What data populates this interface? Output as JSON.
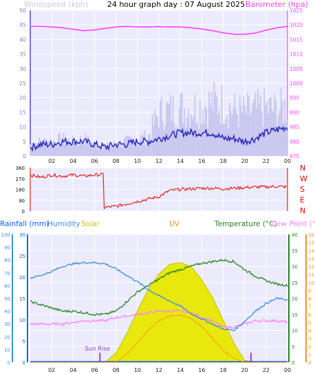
{
  "header": {
    "title": "24 hour graph day : 07 August 2025",
    "left_label": "Windspeed (kph)",
    "right_label": "Barometer (hpa)"
  },
  "colors": {
    "wind": "#c9c9f0",
    "wind_label": "#c8c8e8",
    "wind_avg": "#2020c0",
    "baro": "#ff40ff",
    "direction": "#e02020",
    "rain": "#0060ff",
    "humidity": "#3a8ee0",
    "solar": "#e8e800",
    "solar_label": "#c8c800",
    "uv": "#ff9020",
    "temp": "#208020",
    "dew": "#ff80ff",
    "sunrise": "#a040c0",
    "panel_bg": "#ebebfd",
    "grid": "#ffffff"
  },
  "chart_data": [
    {
      "type": "line",
      "title": "24 hour graph day : 07 August 2025",
      "x_ticks": [
        "02",
        "04",
        "06",
        "08",
        "10",
        "12",
        "14",
        "16",
        "18",
        "20",
        "22",
        "00"
      ],
      "series": [
        {
          "name": "Windspeed (kph)",
          "axis": "left",
          "ylim": [
            0,
            50
          ],
          "y_ticks": [
            0,
            5,
            10,
            15,
            20,
            25,
            30,
            35,
            40,
            45,
            50
          ],
          "x": [
            0,
            1,
            2,
            3,
            4,
            5,
            6,
            7,
            8,
            9,
            10,
            11,
            12,
            13,
            14,
            15,
            16,
            17,
            18,
            19,
            20,
            21,
            22,
            23,
            24
          ],
          "gust": [
            5,
            6,
            6,
            7,
            6,
            7,
            5,
            4,
            5,
            6,
            7,
            8,
            18,
            19,
            20,
            20,
            21,
            22,
            22,
            19,
            18,
            19,
            20,
            19,
            21
          ],
          "average": [
            3,
            4,
            4,
            5,
            5,
            5,
            4,
            3,
            4,
            4,
            5,
            5,
            6,
            7,
            8,
            8,
            8,
            8,
            6,
            6,
            5,
            6,
            8,
            9,
            10
          ]
        },
        {
          "name": "Barometer (hpa)",
          "axis": "right",
          "ylim": [
            975,
            1025
          ],
          "y_ticks": [
            975,
            980,
            985,
            990,
            995,
            1000,
            1005,
            1010,
            1015,
            1020,
            1025
          ],
          "x": [
            0,
            1,
            2,
            3,
            4,
            5,
            6,
            7,
            8,
            9,
            10,
            11,
            12,
            13,
            14,
            15,
            16,
            17,
            18,
            19,
            20,
            21,
            22,
            23,
            24
          ],
          "values": [
            1019.5,
            1019.5,
            1019.3,
            1019,
            1018.5,
            1018,
            1018.3,
            1018.8,
            1019.3,
            1019.5,
            1019.3,
            1019.3,
            1019.4,
            1019.3,
            1019.3,
            1019,
            1018.6,
            1018,
            1017.3,
            1016.8,
            1016.8,
            1017.2,
            1018.2,
            1019,
            1019.5
          ]
        }
      ]
    },
    {
      "type": "scatter",
      "title": "Wind direction",
      "ylim": [
        0,
        360
      ],
      "y_ticks": [
        0,
        90,
        180,
        270,
        360
      ],
      "compass_labels": [
        "N",
        "W",
        "S",
        "E",
        "N"
      ],
      "x": [
        0,
        1,
        2,
        3,
        4,
        5,
        6,
        6.8,
        7,
        8,
        9,
        10,
        11,
        12,
        13,
        14,
        15,
        16,
        17,
        18,
        19,
        20,
        21,
        22,
        23,
        24
      ],
      "values": [
        300,
        280,
        300,
        290,
        300,
        290,
        300,
        305,
        30,
        40,
        60,
        80,
        100,
        120,
        170,
        180,
        185,
        190,
        190,
        185,
        190,
        195,
        200,
        200,
        205,
        200
      ]
    },
    {
      "type": "line",
      "title": "Rainfall, Humidity, Solar, UV, Temperature, Dew Point",
      "legend": [
        "Rainfall (mm)",
        "Humidity",
        "Solar",
        "UV",
        "Temperature (°C)",
        "Dew Point (°C)"
      ],
      "x_ticks": [
        "02",
        "04",
        "06",
        "08",
        "10",
        "12",
        "14",
        "16",
        "18",
        "20",
        "22",
        "00"
      ],
      "axes": {
        "humidity": {
          "ylim": [
            0,
            100
          ],
          "ticks": [
            0,
            10,
            20,
            30,
            40,
            50,
            60,
            70,
            80,
            90,
            100
          ]
        },
        "rain": {
          "ylim": [
            0,
            30
          ],
          "ticks": [
            0,
            5,
            10,
            15,
            20,
            25,
            30
          ]
        },
        "temp": {
          "ylim": [
            0,
            40
          ],
          "ticks": [
            0,
            5,
            10,
            15,
            20,
            25,
            30,
            35,
            40
          ]
        },
        "uv": {
          "ylim": [
            0,
            16
          ],
          "ticks": [
            0,
            1,
            2,
            3,
            4,
            5,
            6,
            7,
            8,
            9,
            10,
            11,
            12,
            13,
            14,
            15,
            16
          ]
        }
      },
      "x": [
        0,
        1,
        2,
        3,
        4,
        5,
        6,
        7,
        8,
        9,
        10,
        11,
        12,
        13,
        14,
        15,
        16,
        17,
        18,
        19,
        20,
        21,
        22,
        23,
        24
      ],
      "humidity": [
        66,
        68,
        71,
        75,
        77,
        78,
        78,
        77,
        73,
        68,
        63,
        57,
        52,
        48,
        44,
        38,
        34,
        30,
        26,
        25,
        32,
        40,
        46,
        50,
        49
      ],
      "temperature": [
        19,
        18,
        17,
        16,
        16,
        15.5,
        15,
        15,
        16,
        19,
        22,
        24,
        26,
        28,
        29,
        30,
        31,
        31.5,
        32,
        31.5,
        29,
        27,
        25.5,
        24.5,
        24
      ],
      "dew_point": [
        12,
        12,
        12,
        12,
        12.5,
        13,
        13,
        13,
        14,
        14.5,
        15,
        15.5,
        16,
        16,
        16,
        15.5,
        14,
        13,
        11,
        11,
        12,
        13,
        13,
        13,
        12.5
      ],
      "solar": [
        0,
        0,
        0,
        0,
        0,
        0,
        0,
        0,
        5,
        15,
        27,
        38,
        46,
        51,
        52,
        50,
        43,
        34,
        22,
        10,
        1,
        0,
        0,
        0,
        0
      ],
      "uv": [
        0,
        0,
        0,
        0,
        0,
        0,
        0,
        0,
        0,
        1,
        2.5,
        4,
        5.2,
        5.8,
        5.9,
        5.5,
        4.5,
        3,
        1.5,
        0.5,
        0,
        0,
        0,
        0,
        0
      ],
      "rainfall": [
        0,
        0,
        0,
        0,
        0,
        0,
        0,
        0,
        0,
        0,
        0,
        0,
        0,
        0,
        0,
        0,
        0,
        0,
        0,
        0,
        0,
        0,
        0,
        0,
        0
      ],
      "sun_rise_label": "Sun Rise",
      "sunrise_x": 6.5,
      "sunset_x": 20.6
    }
  ]
}
